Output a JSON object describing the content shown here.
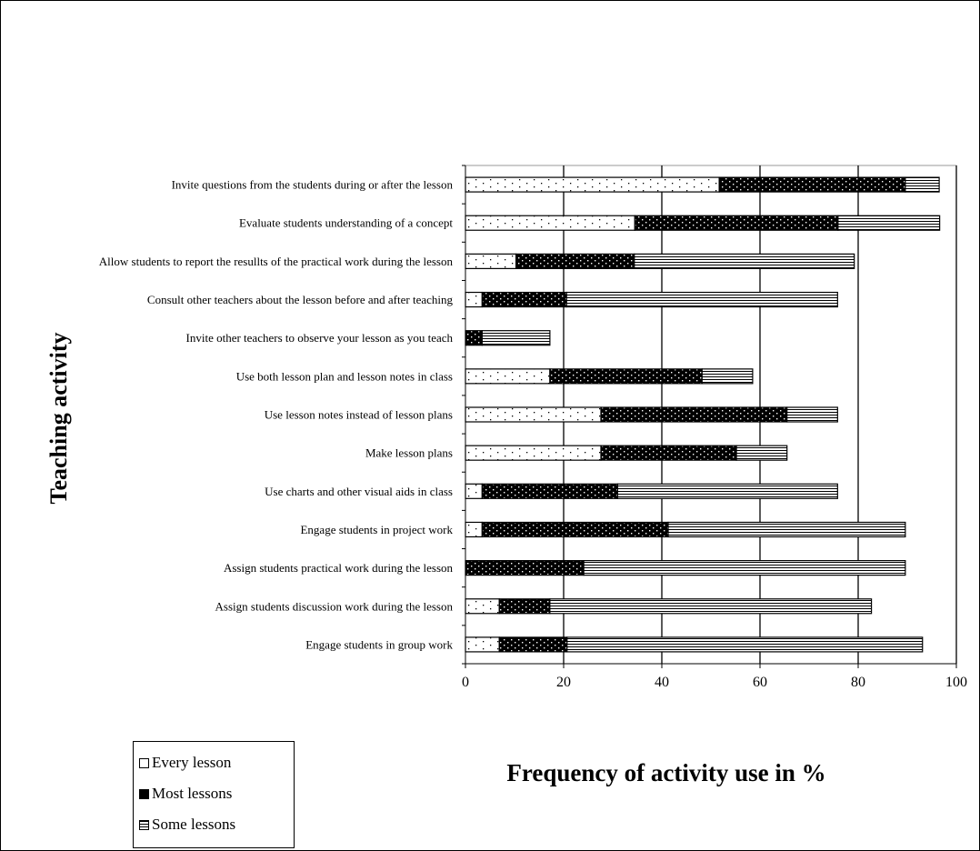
{
  "chart_data": {
    "type": "bar",
    "orientation": "horizontal",
    "stacked": true,
    "categories": [
      "Invite questions from the students during or after the lesson",
      "Evaluate students understanding of a concept",
      "Allow students to report the resullts of the practical work during the lesson",
      "Consult other teachers about the lesson before and after teaching",
      "Invite other teachers to observe your lesson as you teach",
      "Use both lesson plan and lesson notes in class",
      "Use lesson notes instead of lesson plans",
      "Make lesson plans",
      "Use charts and other visual aids in class",
      "Engage students in project work",
      "Assign students practical work during the lesson",
      "Assign students discussion work during the lesson",
      "Engage students in group work"
    ],
    "series": [
      {
        "name": "Every lesson",
        "values": [
          51.7,
          34.5,
          10.3,
          3.4,
          0,
          17.2,
          27.6,
          27.6,
          3.4,
          3.4,
          0,
          6.9,
          6.9
        ]
      },
      {
        "name": "Most lessons",
        "values": [
          37.9,
          41.4,
          24.1,
          17.2,
          3.4,
          31.0,
          37.9,
          27.6,
          27.6,
          37.9,
          24.1,
          10.3,
          13.8
        ]
      },
      {
        "name": "Some lessons",
        "values": [
          6.9,
          20.7,
          44.8,
          55.2,
          13.8,
          10.3,
          10.3,
          10.3,
          44.8,
          48.3,
          65.5,
          65.5,
          72.4
        ]
      }
    ],
    "xlabel": "Frequency of activity use in %",
    "ylabel": "Teaching activity",
    "xlim": [
      0,
      100
    ],
    "xticks": [
      "0",
      "20",
      "40",
      "60",
      "80",
      "100"
    ],
    "grid": "vertical",
    "legend_position": "bottom-left"
  },
  "colors": {
    "every": "#ffffff",
    "most": "#000000",
    "some": "#ffffff",
    "stroke": "#000000"
  }
}
